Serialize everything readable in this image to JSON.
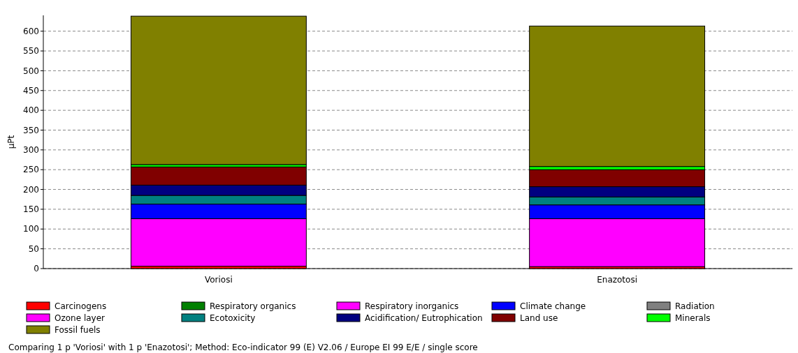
{
  "chart_data": {
    "type": "bar",
    "stacked": true,
    "ylabel": "µPt",
    "categories": [
      "Voriosi",
      "Enazotosi"
    ],
    "ylim": [
      0,
      640
    ],
    "yticks": [
      0,
      50,
      100,
      150,
      200,
      250,
      300,
      350,
      400,
      450,
      500,
      550,
      600
    ],
    "grid": "y",
    "legend": "bottom",
    "series": [
      {
        "name": "Carcinogens",
        "color": "#ff0000",
        "values": [
          6,
          5
        ]
      },
      {
        "name": "Respiratory organics",
        "color": "#008000",
        "values": [
          0,
          0
        ]
      },
      {
        "name": "Respiratory inorganics",
        "color": "#ff00ff",
        "values": [
          120,
          121
        ]
      },
      {
        "name": "Climate change",
        "color": "#0000ff",
        "values": [
          37,
          35
        ]
      },
      {
        "name": "Radiation",
        "color": "#808080",
        "values": [
          0,
          0
        ]
      },
      {
        "name": "Ozone layer",
        "color": "#ff00ff",
        "values": [
          0,
          0
        ]
      },
      {
        "name": "Ecotoxicity",
        "color": "#008080",
        "values": [
          22,
          20
        ]
      },
      {
        "name": "Acidification/ Eutrophication",
        "color": "#000080",
        "values": [
          26,
          26
        ]
      },
      {
        "name": "Land use",
        "color": "#800000",
        "values": [
          46,
          43
        ]
      },
      {
        "name": "Minerals",
        "color": "#00ff00",
        "values": [
          6,
          8
        ]
      },
      {
        "name": "Fossil fuels",
        "color": "#808000",
        "values": [
          375,
          355
        ]
      }
    ],
    "annotations": [
      "Comparing 1 p 'Voriosi' with 1 p 'Enazotosi';  Method: Eco-indicator 99 (E) V2.06 /  Europe EI 99 E/E / single score"
    ]
  }
}
